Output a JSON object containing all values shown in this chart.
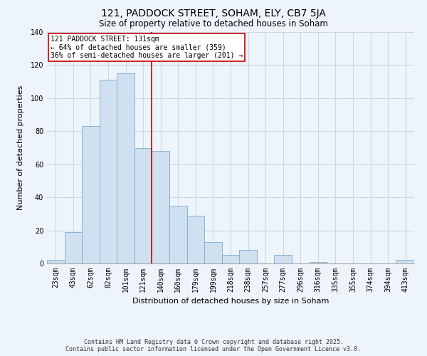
{
  "title": "121, PADDOCK STREET, SOHAM, ELY, CB7 5JA",
  "subtitle": "Size of property relative to detached houses in Soham",
  "xlabel": "Distribution of detached houses by size in Soham",
  "ylabel": "Number of detached properties",
  "bar_color": "#cfe0f0",
  "bar_edge_color": "#7aaad0",
  "background_color": "#eef4fb",
  "grid_color": "#c8d8e8",
  "categories": [
    "23sqm",
    "43sqm",
    "62sqm",
    "82sqm",
    "101sqm",
    "121sqm",
    "140sqm",
    "160sqm",
    "179sqm",
    "199sqm",
    "218sqm",
    "238sqm",
    "257sqm",
    "277sqm",
    "296sqm",
    "316sqm",
    "335sqm",
    "355sqm",
    "374sqm",
    "394sqm",
    "413sqm"
  ],
  "values": [
    2,
    19,
    83,
    111,
    115,
    70,
    68,
    35,
    29,
    13,
    5,
    8,
    0,
    5,
    0,
    1,
    0,
    0,
    0,
    0,
    2
  ],
  "vline_index": 5.5,
  "vline_color": "#cc0000",
  "annotation_title": "121 PADDOCK STREET: 131sqm",
  "annotation_line1": "← 64% of detached houses are smaller (359)",
  "annotation_line2": "36% of semi-detached houses are larger (201) →",
  "annotation_box_color": "#ffffff",
  "annotation_box_edge": "#cc0000",
  "footer_line1": "Contains HM Land Registry data © Crown copyright and database right 2025.",
  "footer_line2": "Contains public sector information licensed under the Open Government Licence v3.0.",
  "ylim": [
    0,
    140
  ],
  "yticks": [
    0,
    20,
    40,
    60,
    80,
    100,
    120,
    140
  ],
  "title_fontsize": 10,
  "subtitle_fontsize": 8.5,
  "xlabel_fontsize": 8,
  "ylabel_fontsize": 8,
  "tick_fontsize": 7,
  "annotation_fontsize": 7,
  "footer_fontsize": 6
}
